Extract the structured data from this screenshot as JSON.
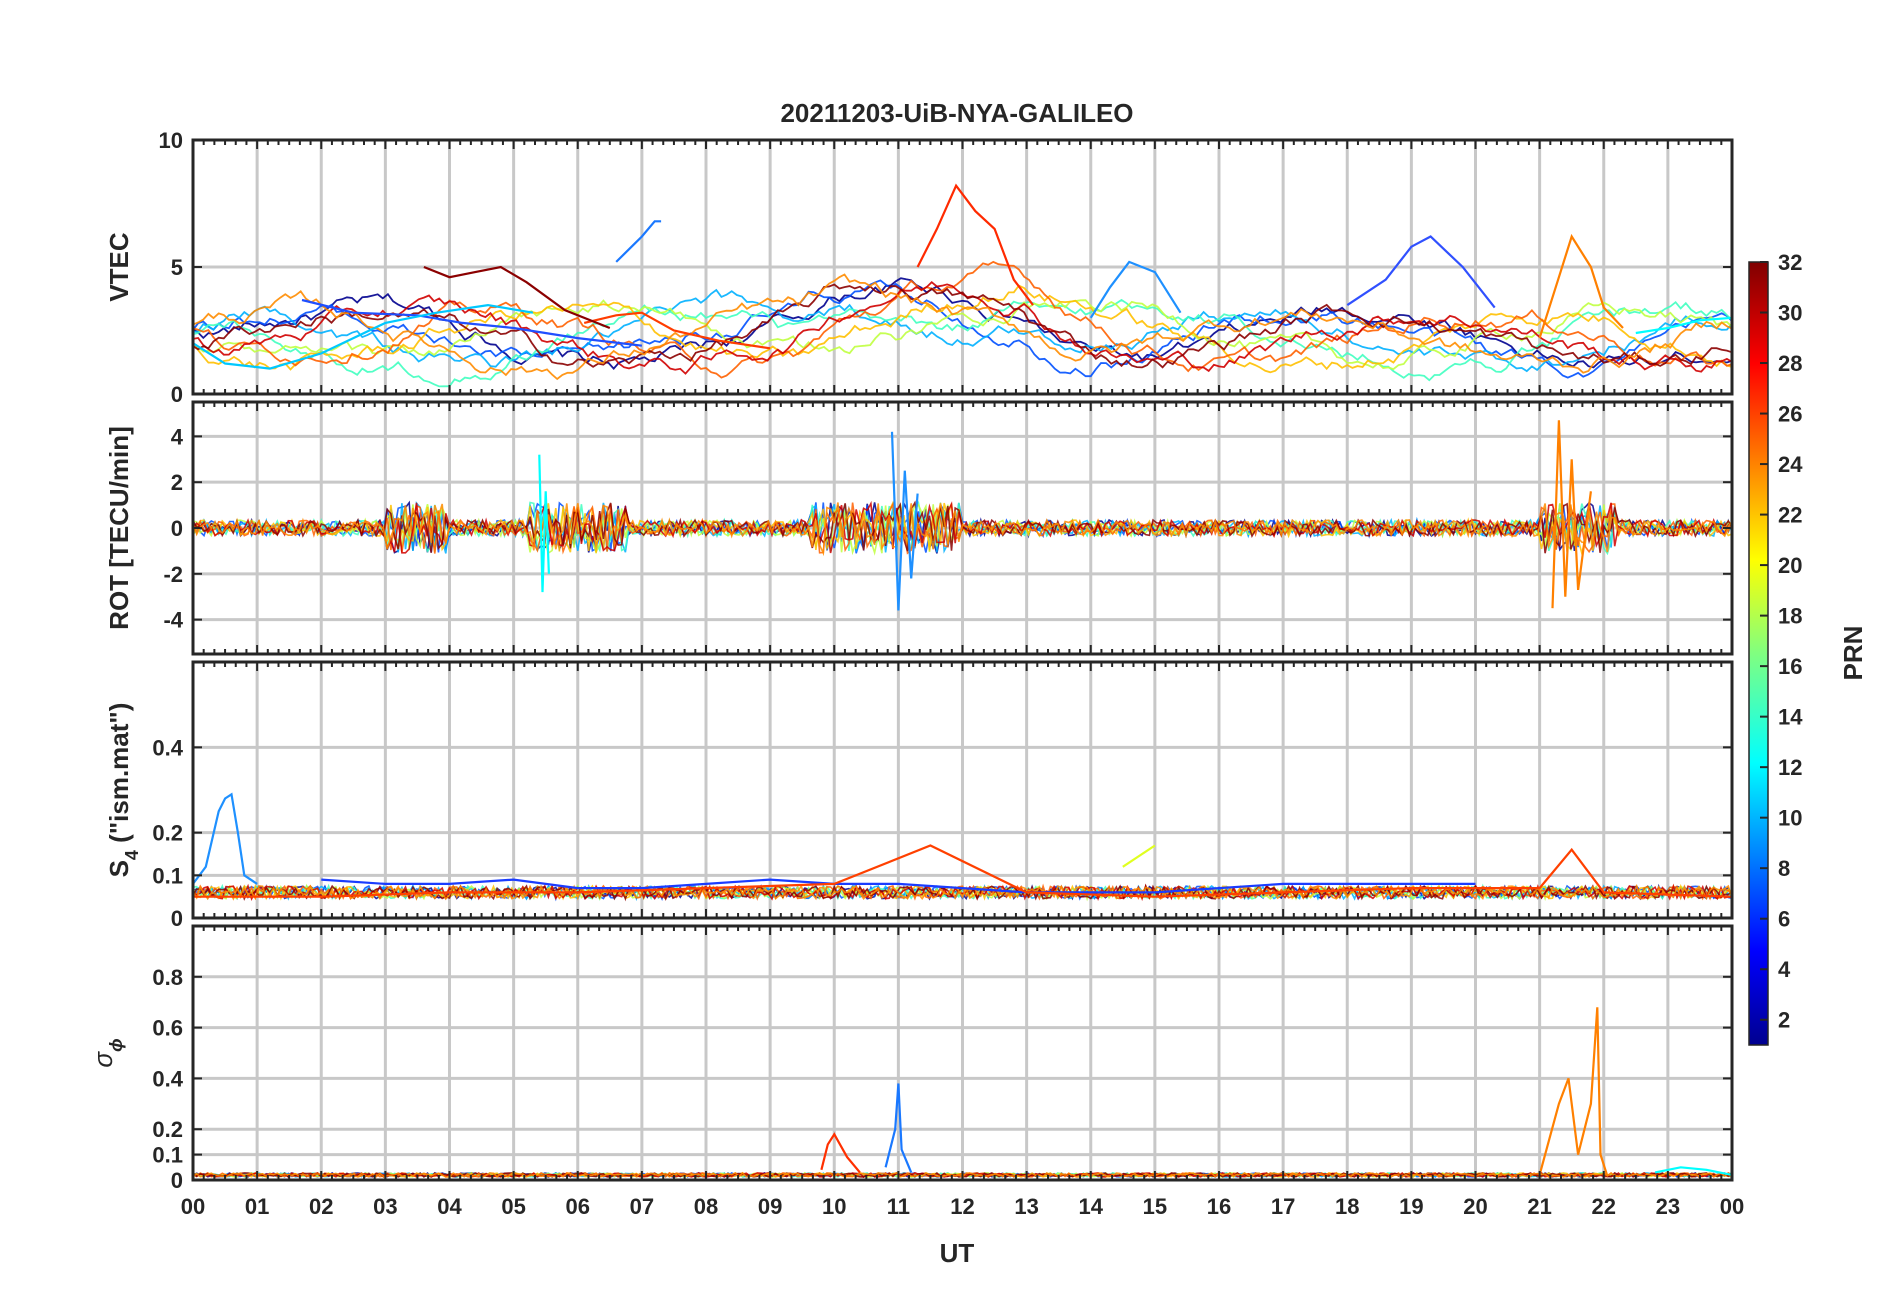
{
  "figure": {
    "title": "20211203-UiB-NYA-GALILEO",
    "xlabel": "UT",
    "x_tick_labels": [
      "00",
      "01",
      "02",
      "03",
      "04",
      "05",
      "06",
      "07",
      "08",
      "09",
      "10",
      "11",
      "12",
      "13",
      "14",
      "15",
      "16",
      "17",
      "18",
      "19",
      "20",
      "21",
      "22",
      "23",
      "00"
    ]
  },
  "chart_data": [
    {
      "type": "line",
      "ylabel": "VTEC",
      "xlim": [
        0,
        24
      ],
      "ylim": [
        0,
        10
      ],
      "y_ticks": [
        0,
        5,
        10
      ],
      "grid": true,
      "series": [
        {
          "color": "#1f4fff",
          "x": [
            1.7,
            2.5,
            3.5,
            4.2,
            5.0,
            6.0,
            7.0
          ],
          "y": [
            3.7,
            3.2,
            3.1,
            2.8,
            2.6,
            2.2,
            1.9
          ]
        },
        {
          "color": "#00c8ff",
          "x": [
            0,
            0.5,
            1.2,
            2.0,
            3.0,
            3.8,
            4.6,
            5.3
          ],
          "y": [
            2.0,
            1.2,
            1.0,
            1.6,
            2.8,
            3.2,
            3.5,
            3.2
          ]
        },
        {
          "color": "#ff3c00",
          "x": [
            6.1,
            6.6,
            7.0,
            7.5,
            8.2,
            9.0
          ],
          "y": [
            2.8,
            3.1,
            3.2,
            2.5,
            2.1,
            1.8
          ]
        },
        {
          "color": "#1a78ff",
          "x": [
            6.6,
            7.0,
            7.2,
            7.3
          ],
          "y": [
            5.2,
            6.2,
            6.8,
            6.8
          ]
        },
        {
          "color": "#8b0000",
          "x": [
            3.6,
            4.0,
            4.4,
            4.8,
            5.2,
            5.8,
            6.5
          ],
          "y": [
            5.0,
            4.6,
            4.8,
            5.0,
            4.4,
            3.3,
            2.6
          ]
        },
        {
          "color": "#ff2a00",
          "x": [
            11.3,
            11.6,
            11.9,
            12.2,
            12.5,
            12.8,
            13.1
          ],
          "y": [
            5.0,
            6.5,
            8.2,
            7.2,
            6.5,
            4.5,
            3.5
          ]
        },
        {
          "color": "#3050ff",
          "x": [
            18.0,
            18.6,
            19.0,
            19.3,
            19.8,
            20.3
          ],
          "y": [
            3.5,
            4.5,
            5.8,
            6.2,
            5.0,
            3.4
          ]
        },
        {
          "color": "#ff8000",
          "x": [
            21.0,
            21.3,
            21.5,
            21.8,
            22.0,
            22.3
          ],
          "y": [
            2.2,
            4.6,
            6.2,
            5.0,
            3.4,
            2.6
          ]
        },
        {
          "color": "#00ffff",
          "x": [
            22.5,
            23.0,
            23.5,
            24.0
          ],
          "y": [
            2.4,
            2.6,
            2.9,
            3.0
          ]
        },
        {
          "color": "#1e90ff",
          "x": [
            14.0,
            14.3,
            14.6,
            15.0,
            15.4
          ],
          "y": [
            3.0,
            4.2,
            5.2,
            4.8,
            3.2
          ]
        }
      ]
    },
    {
      "type": "line",
      "ylabel": "ROT [TECU/min]",
      "xlim": [
        0,
        24
      ],
      "ylim": [
        -5.5,
        5.5
      ],
      "y_ticks": [
        -4,
        -2,
        0,
        2,
        4
      ],
      "grid": true,
      "series": [
        {
          "color": "#00ffff",
          "x": [
            5.4,
            5.45,
            5.5,
            5.55
          ],
          "y": [
            3.2,
            -2.8,
            1.6,
            -2.0
          ]
        },
        {
          "color": "#1e90ff",
          "x": [
            10.9,
            11.0,
            11.1,
            11.2,
            11.3
          ],
          "y": [
            4.2,
            -3.6,
            2.5,
            -2.2,
            1.5
          ]
        },
        {
          "color": "#ff8000",
          "x": [
            21.2,
            21.3,
            21.4,
            21.5,
            21.6,
            21.8
          ],
          "y": [
            -3.5,
            4.7,
            -3.0,
            3.0,
            -2.7,
            1.6
          ]
        }
      ]
    },
    {
      "type": "line",
      "ylabel": "S4 (\"ism.mat\")",
      "ylabel_main": "S",
      "ylabel_sub": "4",
      "ylabel_rest": " (\"ism.mat\")",
      "xlim": [
        0,
        24
      ],
      "ylim": [
        0,
        0.6
      ],
      "y_ticks": [
        0,
        0.1,
        0.2,
        0.4
      ],
      "y_tick_labels": [
        "0",
        "0.1",
        "0.2",
        "0.4"
      ],
      "grid": true,
      "series": [
        {
          "color": "#1e90ff",
          "x": [
            0,
            0.2,
            0.4,
            0.5,
            0.6,
            0.7,
            0.8,
            1.0
          ],
          "y": [
            0.08,
            0.12,
            0.25,
            0.28,
            0.29,
            0.2,
            0.1,
            0.08
          ]
        },
        {
          "color": "#1a3cff",
          "x": [
            2.0,
            3.0,
            4.0,
            5.0,
            6.0,
            7.0,
            8.0,
            9.0,
            10.0,
            11.0,
            12.0,
            13.0,
            14.0,
            15.0,
            16.0,
            17.0,
            18.0,
            19.0,
            20.0
          ],
          "y": [
            0.09,
            0.08,
            0.08,
            0.09,
            0.07,
            0.07,
            0.08,
            0.09,
            0.08,
            0.08,
            0.07,
            0.06,
            0.06,
            0.06,
            0.07,
            0.08,
            0.08,
            0.08,
            0.08
          ]
        },
        {
          "color": "#ff4000",
          "x": [
            0,
            2.0,
            4.0,
            6.0,
            8.0,
            10.0,
            11.5,
            13.0,
            15.0,
            17.0,
            19.0,
            21.0,
            21.5,
            22.0,
            24.0
          ],
          "y": [
            0.05,
            0.05,
            0.06,
            0.06,
            0.07,
            0.08,
            0.17,
            0.06,
            0.05,
            0.06,
            0.07,
            0.07,
            0.16,
            0.06,
            0.05
          ]
        },
        {
          "color": "#e0ff20",
          "x": [
            14.5,
            14.8,
            15.0
          ],
          "y": [
            0.12,
            0.15,
            0.17
          ]
        }
      ]
    },
    {
      "type": "line",
      "ylabel": "σϕ",
      "ylabel_main": "σ",
      "ylabel_sub": "ϕ",
      "xlim": [
        0,
        24
      ],
      "ylim": [
        0,
        1.0
      ],
      "y_ticks": [
        0,
        0.1,
        0.2,
        0.4,
        0.6,
        0.8
      ],
      "y_tick_labels": [
        "0",
        "0.1",
        "0.2",
        "0.4",
        "0.6",
        "0.8"
      ],
      "grid": true,
      "series": [
        {
          "color": "#1a78ff",
          "x": [
            10.8,
            10.95,
            11.0,
            11.05,
            11.2
          ],
          "y": [
            0.05,
            0.2,
            0.38,
            0.12,
            0.03
          ]
        },
        {
          "color": "#ff8000",
          "x": [
            21.0,
            21.3,
            21.45,
            21.6,
            21.8,
            21.9,
            21.95,
            22.05
          ],
          "y": [
            0.02,
            0.3,
            0.4,
            0.1,
            0.3,
            0.68,
            0.1,
            0.02
          ]
        },
        {
          "color": "#ff3000",
          "x": [
            9.8,
            9.9,
            10.0,
            10.2,
            10.4
          ],
          "y": [
            0.04,
            0.14,
            0.18,
            0.09,
            0.03
          ]
        },
        {
          "color": "#00ffff",
          "x": [
            22.8,
            23.2,
            23.6,
            24.0
          ],
          "y": [
            0.03,
            0.05,
            0.04,
            0.02
          ]
        }
      ]
    }
  ],
  "colorbar": {
    "label": "PRN",
    "min": 1,
    "max": 32,
    "ticks": [
      2,
      4,
      6,
      8,
      10,
      12,
      14,
      16,
      18,
      20,
      22,
      24,
      26,
      28,
      30,
      32
    ]
  }
}
